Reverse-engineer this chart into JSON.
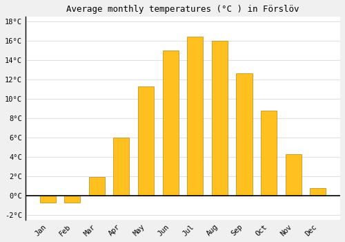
{
  "title": "Average monthly temperatures (°C ) in Förslöv",
  "months": [
    "Jan",
    "Feb",
    "Mar",
    "Apr",
    "May",
    "Jun",
    "Jul",
    "Aug",
    "Sep",
    "Oct",
    "Nov",
    "Dec"
  ],
  "values": [
    -0.7,
    -0.7,
    1.9,
    6.0,
    11.3,
    15.0,
    16.4,
    16.0,
    12.6,
    8.8,
    4.3,
    0.8
  ],
  "bar_color": "#FFC020",
  "bar_edge_color": "#B8860B",
  "background_color": "#F0F0F0",
  "plot_bg_color": "#FFFFFF",
  "grid_color": "#E0E0E0",
  "spine_color": "#000000",
  "zero_line_color": "#000000",
  "title_fontsize": 9,
  "tick_fontsize": 7.5,
  "ylim": [
    -2.5,
    18.5
  ],
  "yticks": [
    -2,
    0,
    2,
    4,
    6,
    8,
    10,
    12,
    14,
    16,
    18
  ]
}
